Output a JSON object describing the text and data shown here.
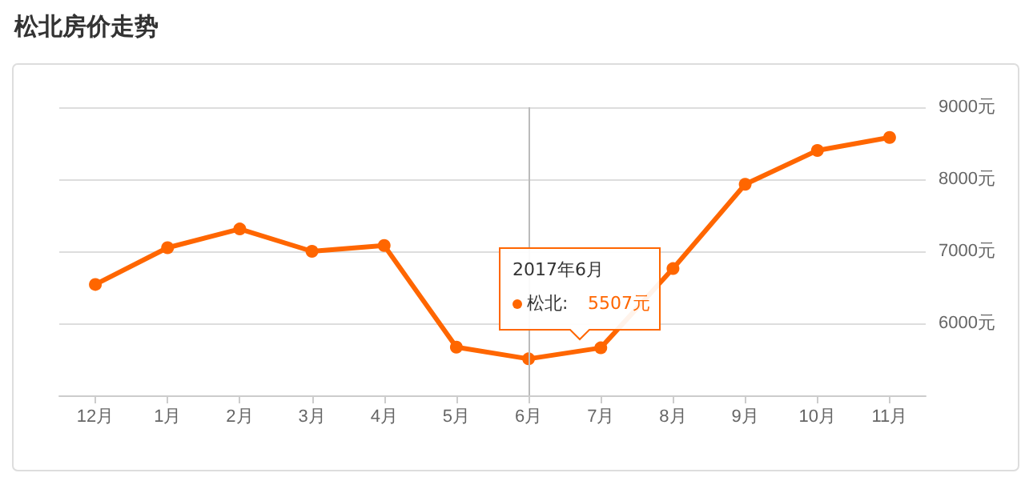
{
  "chart_data": {
    "type": "line",
    "title": "松北房价走势",
    "categories": [
      "12月",
      "1月",
      "2月",
      "3月",
      "4月",
      "5月",
      "6月",
      "7月",
      "8月",
      "9月",
      "10月",
      "11月"
    ],
    "series": [
      {
        "color": "#ff6600",
        "values": [
          6540,
          7050,
          7310,
          7000,
          7080,
          5670,
          5507,
          5660,
          6760,
          7930,
          8400,
          8580
        ]
      }
    ],
    "ylim": [
      5000,
      9000
    ],
    "yticks": [
      {
        "value": 5000,
        "label": null
      },
      {
        "value": 6000,
        "label": "6000元"
      },
      {
        "value": 7000,
        "label": "7000元"
      },
      {
        "value": 8000,
        "label": "8000元"
      },
      {
        "value": 9000,
        "label": "9000元"
      }
    ],
    "ref_lines": [
      {
        "axis": "x",
        "value": "6月",
        "color": "#bbbbbb"
      }
    ],
    "grid": "y",
    "marker": "circle",
    "line_style": "solid",
    "annotations": [
      "2017年6月",
      "松北:",
      "5507元"
    ]
  }
}
